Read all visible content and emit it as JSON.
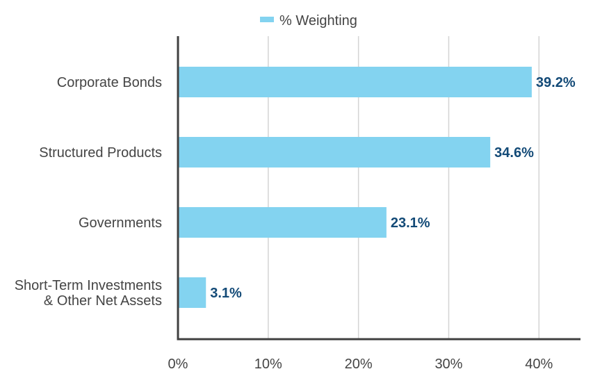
{
  "chart_data": {
    "type": "bar",
    "orientation": "horizontal",
    "categories": [
      [
        "Corporate Bonds"
      ],
      [
        "Structured Products"
      ],
      [
        "Governments"
      ],
      [
        "Short-Term Investments",
        "& Other Net Assets"
      ]
    ],
    "series": [
      {
        "name": "% Weighting",
        "values": [
          39.2,
          34.6,
          23.1,
          3.1
        ],
        "data_labels": [
          "39.2%",
          "34.6%",
          "23.1%",
          "3.1%"
        ]
      }
    ],
    "xlim": [
      0,
      44.6
    ],
    "x_ticks": [
      0,
      10,
      20,
      30,
      40
    ],
    "x_tick_labels": [
      "0%",
      "10%",
      "20%",
      "30%",
      "40%"
    ],
    "grid": "vertical",
    "legend": "top",
    "colors": {
      "bar": "#83d3f0",
      "data_label": "#134a77",
      "axis": "#404040",
      "grid": "#d4d4d4"
    }
  }
}
